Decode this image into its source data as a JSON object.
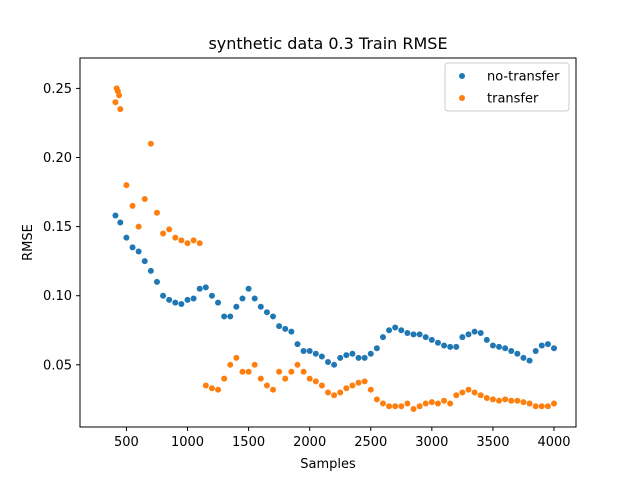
{
  "chart_data": {
    "type": "scatter",
    "title": "synthetic data 0.3 Train RMSE",
    "xlabel": "Samples",
    "ylabel": "RMSE",
    "xlim": [
      120,
      4180
    ],
    "ylim": [
      0.005,
      0.272
    ],
    "xticks": [
      500,
      1000,
      1500,
      2000,
      2500,
      3000,
      3500,
      4000
    ],
    "xtick_labels": [
      "500",
      "1000",
      "1500",
      "2000",
      "2500",
      "3000",
      "3500",
      "4000"
    ],
    "yticks": [
      0.05,
      0.1,
      0.15,
      0.2,
      0.25
    ],
    "ytick_labels": [
      "0.05",
      "0.10",
      "0.15",
      "0.20",
      "0.25"
    ],
    "grid": false,
    "legend_position": "top-right",
    "series": [
      {
        "name": "no-transfer",
        "color": "#1f77b4",
        "x": [
          410,
          450,
          500,
          550,
          600,
          650,
          700,
          750,
          800,
          850,
          900,
          950,
          1000,
          1050,
          1100,
          1150,
          1200,
          1250,
          1300,
          1350,
          1400,
          1450,
          1500,
          1550,
          1600,
          1650,
          1700,
          1750,
          1800,
          1850,
          1900,
          1950,
          2000,
          2050,
          2100,
          2150,
          2200,
          2250,
          2300,
          2350,
          2400,
          2450,
          2500,
          2550,
          2600,
          2650,
          2700,
          2750,
          2800,
          2850,
          2900,
          2950,
          3000,
          3050,
          3100,
          3150,
          3200,
          3250,
          3300,
          3350,
          3400,
          3450,
          3500,
          3550,
          3600,
          3650,
          3700,
          3750,
          3800,
          3850,
          3900,
          3950,
          4000
        ],
        "y": [
          0.158,
          0.153,
          0.142,
          0.135,
          0.132,
          0.125,
          0.118,
          0.11,
          0.1,
          0.097,
          0.095,
          0.094,
          0.097,
          0.098,
          0.105,
          0.106,
          0.1,
          0.095,
          0.085,
          0.085,
          0.092,
          0.098,
          0.105,
          0.098,
          0.092,
          0.088,
          0.085,
          0.078,
          0.076,
          0.074,
          0.065,
          0.06,
          0.06,
          0.058,
          0.056,
          0.052,
          0.05,
          0.055,
          0.057,
          0.058,
          0.055,
          0.055,
          0.058,
          0.062,
          0.07,
          0.075,
          0.077,
          0.075,
          0.073,
          0.072,
          0.072,
          0.07,
          0.068,
          0.066,
          0.064,
          0.063,
          0.063,
          0.07,
          0.072,
          0.074,
          0.073,
          0.068,
          0.064,
          0.063,
          0.062,
          0.06,
          0.058,
          0.055,
          0.053,
          0.06,
          0.064,
          0.065,
          0.062
        ]
      },
      {
        "name": "transfer",
        "color": "#ff7f0e",
        "x": [
          410,
          420,
          430,
          440,
          450,
          500,
          550,
          600,
          650,
          700,
          750,
          800,
          850,
          900,
          950,
          1000,
          1050,
          1100,
          1150,
          1200,
          1250,
          1300,
          1350,
          1400,
          1450,
          1500,
          1550,
          1600,
          1650,
          1700,
          1750,
          1800,
          1850,
          1900,
          1950,
          2000,
          2050,
          2100,
          2150,
          2200,
          2250,
          2300,
          2350,
          2400,
          2450,
          2500,
          2550,
          2600,
          2650,
          2700,
          2750,
          2800,
          2850,
          2900,
          2950,
          3000,
          3050,
          3100,
          3150,
          3200,
          3250,
          3300,
          3350,
          3400,
          3450,
          3500,
          3550,
          3600,
          3650,
          3700,
          3750,
          3800,
          3850,
          3900,
          3950,
          4000
        ],
        "y": [
          0.24,
          0.25,
          0.248,
          0.245,
          0.235,
          0.18,
          0.165,
          0.15,
          0.17,
          0.21,
          0.16,
          0.145,
          0.148,
          0.142,
          0.14,
          0.138,
          0.14,
          0.138,
          0.035,
          0.033,
          0.032,
          0.04,
          0.05,
          0.055,
          0.045,
          0.045,
          0.05,
          0.04,
          0.035,
          0.032,
          0.045,
          0.04,
          0.045,
          0.05,
          0.045,
          0.04,
          0.038,
          0.035,
          0.03,
          0.028,
          0.03,
          0.033,
          0.035,
          0.037,
          0.038,
          0.032,
          0.025,
          0.022,
          0.02,
          0.02,
          0.02,
          0.022,
          0.018,
          0.02,
          0.022,
          0.023,
          0.022,
          0.024,
          0.022,
          0.028,
          0.03,
          0.032,
          0.03,
          0.028,
          0.026,
          0.025,
          0.024,
          0.025,
          0.024,
          0.024,
          0.023,
          0.022,
          0.02,
          0.02,
          0.02,
          0.022
        ]
      }
    ]
  }
}
